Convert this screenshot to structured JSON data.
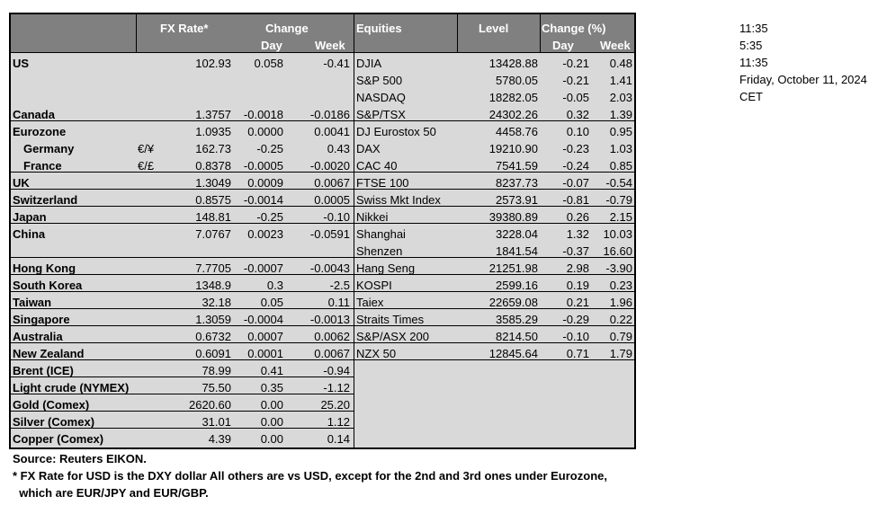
{
  "headers": {
    "fx_rate": "FX Rate*",
    "change": "Change",
    "day": "Day",
    "week": "Week",
    "equities": "Equities",
    "level": "Level",
    "change_pct": "Change (%)",
    "eq_day": "Day",
    "eq_week": "Week"
  },
  "fx_rows": [
    {
      "name": "US",
      "sym": "",
      "rate": "102.93",
      "day": "0.058",
      "week": "-0.41"
    },
    {
      "name": "Canada",
      "sym": "",
      "rate": "1.3757",
      "day": "-0.0018",
      "week": "-0.0186"
    },
    {
      "name": "Eurozone",
      "sym": "",
      "rate": "1.0935",
      "day": "0.0000",
      "week": "0.0041"
    },
    {
      "name": "Germany",
      "sym": "€/¥",
      "rate": "162.73",
      "day": "-0.25",
      "week": "0.43"
    },
    {
      "name": "France",
      "sym": "€/£",
      "rate": "0.8378",
      "day": "-0.0005",
      "week": "-0.0020"
    },
    {
      "name": "UK",
      "sym": "",
      "rate": "1.3049",
      "day": "0.0009",
      "week": "0.0067"
    },
    {
      "name": "Switzerland",
      "sym": "",
      "rate": "0.8575",
      "day": "-0.0014",
      "week": "0.0005"
    },
    {
      "name": "Japan",
      "sym": "",
      "rate": "148.81",
      "day": "-0.25",
      "week": "-0.10"
    },
    {
      "name": "China",
      "sym": "",
      "rate": "7.0767",
      "day": "0.0023",
      "week": "-0.0591"
    },
    {
      "name": "Hong Kong",
      "sym": "",
      "rate": "7.7705",
      "day": "-0.0007",
      "week": "-0.0043"
    },
    {
      "name": "South Korea",
      "sym": "",
      "rate": "1348.9",
      "day": "0.3",
      "week": "-2.5"
    },
    {
      "name": "Taiwan",
      "sym": "",
      "rate": "32.18",
      "day": "0.05",
      "week": "0.11"
    },
    {
      "name": "Singapore",
      "sym": "",
      "rate": "1.3059",
      "day": "-0.0004",
      "week": "-0.0013"
    },
    {
      "name": "Australia",
      "sym": "",
      "rate": "0.6732",
      "day": "0.0007",
      "week": "0.0062"
    },
    {
      "name": "New Zealand",
      "sym": "",
      "rate": "0.6091",
      "day": "0.0001",
      "week": "0.0067"
    },
    {
      "name": "Brent (ICE)",
      "sym": "",
      "rate": "78.99",
      "day": "0.41",
      "week": "-0.94"
    },
    {
      "name": "Light crude (NYMEX)",
      "sym": "",
      "rate": "75.50",
      "day": "0.35",
      "week": "-1.12"
    },
    {
      "name": "Gold (Comex)",
      "sym": "",
      "rate": "2620.60",
      "day": "0.00",
      "week": "25.20"
    },
    {
      "name": "Silver (Comex)",
      "sym": "",
      "rate": "31.01",
      "day": "0.00",
      "week": "1.12"
    },
    {
      "name": "Copper (Comex)",
      "sym": "",
      "rate": "4.39",
      "day": "0.00",
      "week": "0.14"
    }
  ],
  "equity_rows": [
    {
      "name": "DJIA",
      "level": "13428.88",
      "day": "-0.21",
      "week": "0.48"
    },
    {
      "name": "S&P 500",
      "level": "5780.05",
      "day": "-0.21",
      "week": "1.41"
    },
    {
      "name": "NASDAQ",
      "level": "18282.05",
      "day": "-0.05",
      "week": "2.03"
    },
    {
      "name": "S&P/TSX",
      "level": "24302.26",
      "day": "0.32",
      "week": "1.39"
    },
    {
      "name": "DJ Eurostox 50",
      "level": "4458.76",
      "day": "0.10",
      "week": "0.95"
    },
    {
      "name": "DAX",
      "level": "19210.90",
      "day": "-0.23",
      "week": "1.03"
    },
    {
      "name": "CAC 40",
      "level": "7541.59",
      "day": "-0.24",
      "week": "0.85"
    },
    {
      "name": "FTSE 100",
      "level": "8237.73",
      "day": "-0.07",
      "week": "-0.54"
    },
    {
      "name": "Swiss Mkt Index",
      "level": "2573.91",
      "day": "-0.81",
      "week": "-0.79"
    },
    {
      "name": "Nikkei",
      "level": "39380.89",
      "day": "0.26",
      "week": "2.15"
    },
    {
      "name": "Shanghai",
      "level": "3228.04",
      "day": "1.32",
      "week": "10.03"
    },
    {
      "name": "Shenzen",
      "level": "1841.54",
      "day": "-0.37",
      "week": "16.60"
    },
    {
      "name": "Hang Seng",
      "level": "21251.98",
      "day": "2.98",
      "week": "-3.90"
    },
    {
      "name": "KOSPI",
      "level": "2599.16",
      "day": "0.19",
      "week": "0.23"
    },
    {
      "name": "Taiex",
      "level": "22659.08",
      "day": "0.21",
      "week": "1.96"
    },
    {
      "name": "Straits Times",
      "level": "3585.29",
      "day": "-0.29",
      "week": "0.22"
    },
    {
      "name": "S&P/ASX  200",
      "level": "8214.50",
      "day": "-0.10",
      "week": "0.79"
    },
    {
      "name": "NZX 50",
      "level": "12845.64",
      "day": "0.71",
      "week": "1.79"
    }
  ],
  "clock": {
    "time1": "11:35",
    "time2": "5:35",
    "time3": "11:35",
    "date": "Friday, October 11, 2024",
    "tz": "CET"
  },
  "notes": {
    "source": "Source:  Reuters EIKON.",
    "footnote_1": "* FX Rate for USD is the DXY dollar  All others are vs USD, except for the 2nd and 3rd ones under Eurozone,",
    "footnote_2": "  which are EUR/JPY and EUR/GBP."
  }
}
